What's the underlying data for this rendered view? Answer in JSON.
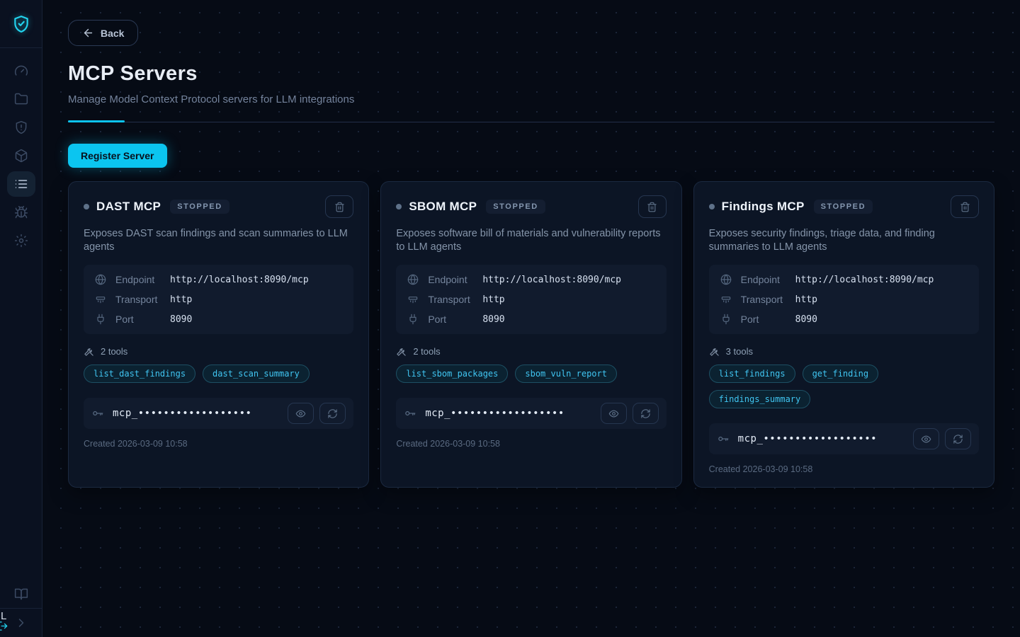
{
  "app": {
    "logo_icon": "shield-check-icon",
    "accent_color": "#0bc5f0"
  },
  "sidebar": {
    "items": [
      {
        "icon": "gauge-icon",
        "active": false
      },
      {
        "icon": "folder-icon",
        "active": false
      },
      {
        "icon": "shield-alert-icon",
        "active": false
      },
      {
        "icon": "package-icon",
        "active": false
      },
      {
        "icon": "list-icon",
        "active": true
      },
      {
        "icon": "bug-icon",
        "active": false
      },
      {
        "icon": "gear-icon",
        "active": false
      }
    ],
    "footer_icons": [
      "book-icon",
      "chevron-right-icon"
    ],
    "overflow_text": "L",
    "overflow_icon": "logout-icon"
  },
  "page": {
    "back_label": "Back",
    "title": "MCP Servers",
    "subtitle": "Manage Model Context Protocol servers for LLM integrations",
    "register_button_label": "Register Server"
  },
  "cards": [
    {
      "name": "DAST MCP",
      "status": "STOPPED",
      "description": "Exposes DAST scan findings and scan summaries to LLM agents",
      "fields": [
        {
          "icon": "globe-icon",
          "label": "Endpoint",
          "value": "http://localhost:8090/mcp"
        },
        {
          "icon": "network-icon",
          "label": "Transport",
          "value": "http"
        },
        {
          "icon": "plug-icon",
          "label": "Port",
          "value": "8090"
        }
      ],
      "tools_label": "2 tools",
      "tags": [
        "list_dast_findings",
        "dast_scan_summary"
      ],
      "api_key_masked": "mcp_••••••••••••••••••",
      "created": "Created 2026-03-09 10:58"
    },
    {
      "name": "SBOM MCP",
      "status": "STOPPED",
      "description": "Exposes software bill of materials and vulnerability reports to LLM agents",
      "fields": [
        {
          "icon": "globe-icon",
          "label": "Endpoint",
          "value": "http://localhost:8090/mcp"
        },
        {
          "icon": "network-icon",
          "label": "Transport",
          "value": "http"
        },
        {
          "icon": "plug-icon",
          "label": "Port",
          "value": "8090"
        }
      ],
      "tools_label": "2 tools",
      "tags": [
        "list_sbom_packages",
        "sbom_vuln_report"
      ],
      "api_key_masked": "mcp_••••••••••••••••••",
      "created": "Created 2026-03-09 10:58"
    },
    {
      "name": "Findings MCP",
      "status": "STOPPED",
      "description": "Exposes security findings, triage data, and finding summaries to LLM agents",
      "fields": [
        {
          "icon": "globe-icon",
          "label": "Endpoint",
          "value": "http://localhost:8090/mcp"
        },
        {
          "icon": "network-icon",
          "label": "Transport",
          "value": "http"
        },
        {
          "icon": "plug-icon",
          "label": "Port",
          "value": "8090"
        }
      ],
      "tools_label": "3 tools",
      "tags": [
        "list_findings",
        "get_finding",
        "findings_summary"
      ],
      "api_key_masked": "mcp_••••••••••••••••••",
      "created": "Created 2026-03-09 10:58"
    }
  ]
}
